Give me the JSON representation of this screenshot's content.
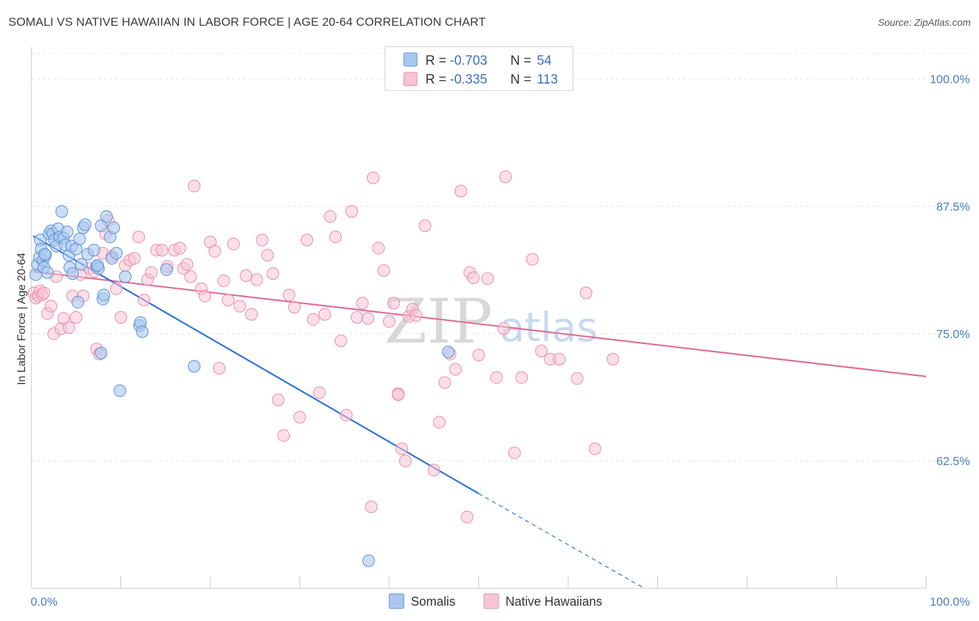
{
  "title": "SOMALI VS NATIVE HAWAIIAN IN LABOR FORCE | AGE 20-64 CORRELATION CHART",
  "source": "Source: ZipAtlas.com",
  "watermark": {
    "zip": "ZIP",
    "atlas": "atlas"
  },
  "colors": {
    "somali_fill": "#aac8ef",
    "somali_stroke": "#5b8fd6",
    "somali_line": "#2b6fd4",
    "hawaiian_fill": "#f7c5d5",
    "hawaiian_stroke": "#e88aa8",
    "hawaiian_line": "#e06a94",
    "grid": "#e4e4e4",
    "tick_text": "#4a7cc4"
  },
  "legend": {
    "rows": [
      {
        "r_label": "R = ",
        "r_value": "-0.703",
        "n_label": "N = ",
        "n_value": "54",
        "series": "somali"
      },
      {
        "r_label": "R = ",
        "r_value": "-0.335",
        "n_label": "N = ",
        "n_value": "113",
        "series": "hawaiian"
      }
    ]
  },
  "bottom_legend": [
    "Somalis",
    "Native Hawaiians"
  ],
  "chart_data": {
    "type": "scatter",
    "title": "SOMALI VS NATIVE HAWAIIAN IN LABOR FORCE | AGE 20-64 CORRELATION CHART",
    "xlabel": "",
    "ylabel": "In Labor Force | Age 20-64",
    "xlim": [
      0,
      100
    ],
    "ylim": [
      50,
      102.5
    ],
    "x_tick_labels": [
      "0.0%",
      "100.0%"
    ],
    "y_ticks": [
      62.5,
      75.0,
      87.5,
      100.0
    ],
    "y_tick_labels": [
      "62.5%",
      "75.0%",
      "87.5%",
      "100.0%"
    ],
    "series": [
      {
        "name": "Somalis",
        "r": -0.703,
        "n": 54,
        "trend": {
          "x0": 0.2,
          "y0": 84.6,
          "x1": 50,
          "y1": 59.3,
          "dash_to_x": 68.5,
          "dash_to_y": 50
        },
        "points": [
          [
            0.5,
            80.8
          ],
          [
            0.7,
            81.8
          ],
          [
            0.9,
            82.5
          ],
          [
            1.0,
            84.2
          ],
          [
            1.1,
            83.3
          ],
          [
            1.3,
            82.2
          ],
          [
            1.4,
            81.5
          ],
          [
            1.6,
            82.7
          ],
          [
            1.8,
            81.0
          ],
          [
            2.0,
            84.8
          ],
          [
            2.2,
            85.1
          ],
          [
            2.4,
            84.8
          ],
          [
            2.6,
            84.2
          ],
          [
            2.8,
            83.6
          ],
          [
            3.0,
            85.3
          ],
          [
            3.2,
            84.5
          ],
          [
            3.4,
            87.0
          ],
          [
            3.6,
            84.4
          ],
          [
            3.8,
            83.7
          ],
          [
            4.0,
            85.0
          ],
          [
            4.2,
            82.7
          ],
          [
            4.3,
            81.5
          ],
          [
            4.5,
            83.6
          ],
          [
            4.6,
            80.9
          ],
          [
            5.0,
            83.3
          ],
          [
            5.2,
            78.1
          ],
          [
            5.4,
            84.3
          ],
          [
            5.6,
            81.8
          ],
          [
            5.8,
            85.4
          ],
          [
            6.0,
            85.7
          ],
          [
            6.3,
            82.8
          ],
          [
            7.0,
            83.2
          ],
          [
            7.3,
            81.6
          ],
          [
            7.5,
            81.4
          ],
          [
            7.8,
            85.6
          ],
          [
            8.0,
            78.4
          ],
          [
            8.1,
            78.8
          ],
          [
            8.4,
            86.5
          ],
          [
            8.8,
            84.5
          ],
          [
            9.0,
            82.4
          ],
          [
            9.2,
            85.4
          ],
          [
            9.5,
            82.9
          ],
          [
            7.8,
            73.1
          ],
          [
            9.9,
            69.4
          ],
          [
            10.5,
            80.6
          ],
          [
            12.1,
            75.8
          ],
          [
            12.2,
            76.1
          ],
          [
            12.4,
            75.2
          ],
          [
            15.1,
            81.3
          ],
          [
            18.2,
            71.8
          ],
          [
            46.6,
            73.2
          ],
          [
            37.7,
            52.7
          ],
          [
            1.5,
            82.8
          ],
          [
            7.4,
            81.7
          ]
        ]
      },
      {
        "name": "Native Hawaiians",
        "r": -0.335,
        "n": 113,
        "trend": {
          "x0": 0.2,
          "y0": 81.1,
          "x1": 100,
          "y1": 70.8
        },
        "points": [
          [
            0.3,
            79.0
          ],
          [
            0.5,
            78.5
          ],
          [
            0.8,
            78.7
          ],
          [
            1.0,
            79.2
          ],
          [
            1.2,
            78.8
          ],
          [
            1.4,
            79.0
          ],
          [
            1.8,
            77.0
          ],
          [
            2.2,
            77.7
          ],
          [
            2.5,
            75.0
          ],
          [
            2.8,
            80.6
          ],
          [
            3.3,
            75.5
          ],
          [
            3.6,
            76.5
          ],
          [
            4.2,
            75.6
          ],
          [
            4.6,
            78.7
          ],
          [
            5.0,
            76.6
          ],
          [
            5.5,
            80.8
          ],
          [
            5.8,
            78.7
          ],
          [
            6.5,
            81.4
          ],
          [
            7.0,
            81.1
          ],
          [
            7.3,
            73.5
          ],
          [
            7.6,
            73.0
          ],
          [
            8.0,
            82.9
          ],
          [
            8.3,
            84.8
          ],
          [
            8.6,
            86.1
          ],
          [
            9.0,
            82.6
          ],
          [
            9.5,
            79.4
          ],
          [
            10.0,
            76.6
          ],
          [
            10.5,
            81.7
          ],
          [
            11.0,
            82.2
          ],
          [
            11.5,
            82.4
          ],
          [
            12.0,
            84.5
          ],
          [
            12.6,
            78.3
          ],
          [
            13.0,
            80.3
          ],
          [
            13.4,
            81.0
          ],
          [
            14.0,
            83.2
          ],
          [
            14.6,
            83.2
          ],
          [
            15.2,
            81.6
          ],
          [
            16.0,
            83.2
          ],
          [
            16.6,
            83.4
          ],
          [
            17.0,
            81.4
          ],
          [
            17.4,
            81.8
          ],
          [
            17.8,
            80.6
          ],
          [
            18.2,
            89.5
          ],
          [
            19.0,
            79.4
          ],
          [
            19.4,
            78.7
          ],
          [
            20.0,
            84.0
          ],
          [
            20.5,
            83.1
          ],
          [
            21.0,
            71.6
          ],
          [
            21.5,
            80.2
          ],
          [
            22.0,
            78.3
          ],
          [
            22.6,
            83.8
          ],
          [
            23.3,
            77.7
          ],
          [
            24.0,
            80.7
          ],
          [
            24.6,
            76.9
          ],
          [
            25.2,
            80.3
          ],
          [
            25.8,
            84.2
          ],
          [
            26.4,
            82.7
          ],
          [
            27.0,
            80.9
          ],
          [
            27.6,
            68.5
          ],
          [
            28.2,
            65.0
          ],
          [
            28.8,
            78.8
          ],
          [
            29.4,
            77.6
          ],
          [
            30.0,
            66.8
          ],
          [
            30.8,
            84.2
          ],
          [
            31.5,
            76.4
          ],
          [
            32.2,
            69.2
          ],
          [
            32.8,
            76.9
          ],
          [
            33.4,
            86.5
          ],
          [
            34.0,
            84.5
          ],
          [
            34.6,
            74.3
          ],
          [
            35.2,
            67.0
          ],
          [
            35.8,
            87.0
          ],
          [
            36.4,
            76.6
          ],
          [
            37.0,
            78.0
          ],
          [
            37.6,
            76.5
          ],
          [
            38.2,
            90.3
          ],
          [
            38.8,
            83.4
          ],
          [
            39.4,
            81.2
          ],
          [
            40.0,
            76.2
          ],
          [
            40.5,
            78.0
          ],
          [
            41.0,
            69.1
          ],
          [
            41.4,
            63.7
          ],
          [
            41.8,
            62.5
          ],
          [
            42.2,
            76.7
          ],
          [
            42.6,
            77.4
          ],
          [
            43.0,
            76.8
          ],
          [
            44.0,
            85.6
          ],
          [
            45.0,
            61.6
          ],
          [
            45.6,
            66.3
          ],
          [
            46.2,
            70.2
          ],
          [
            46.8,
            73.0
          ],
          [
            47.4,
            71.5
          ],
          [
            48.0,
            89.0
          ],
          [
            49.0,
            81.0
          ],
          [
            49.4,
            80.5
          ],
          [
            50.0,
            72.9
          ],
          [
            51.0,
            80.4
          ],
          [
            52.0,
            70.7
          ],
          [
            53.0,
            90.4
          ],
          [
            54.0,
            63.3
          ],
          [
            54.8,
            70.7
          ],
          [
            56.0,
            82.3
          ],
          [
            57.0,
            73.3
          ],
          [
            58.0,
            72.5
          ],
          [
            59.0,
            72.5
          ],
          [
            61.0,
            70.6
          ],
          [
            62.0,
            79.0
          ],
          [
            63.0,
            63.7
          ],
          [
            65.0,
            72.5
          ],
          [
            38.0,
            58.0
          ],
          [
            48.7,
            57.0
          ],
          [
            41.0,
            69.0
          ],
          [
            52.8,
            75.5
          ]
        ]
      }
    ]
  }
}
